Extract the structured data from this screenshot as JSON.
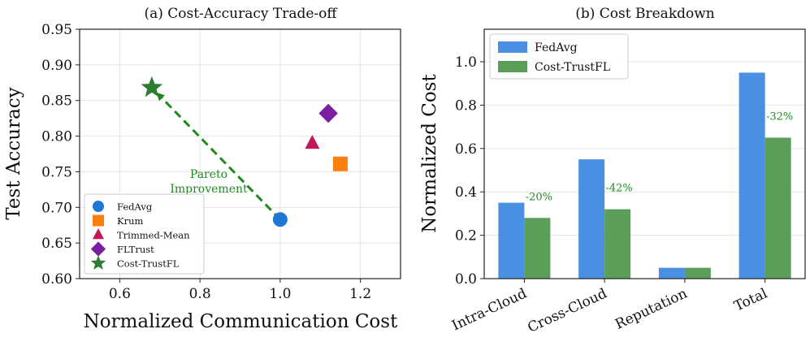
{
  "chart_data": [
    {
      "type": "scatter",
      "title": "(a) Cost-Accuracy Trade-off",
      "xlabel": "Normalized Communication Cost",
      "ylabel": "Test Accuracy",
      "xlim": [
        0.5,
        1.3
      ],
      "ylim": [
        0.6,
        0.95
      ],
      "xticks": [
        0.6,
        0.8,
        1.0,
        1.2
      ],
      "yticks": [
        0.6,
        0.65,
        0.7,
        0.75,
        0.8,
        0.85,
        0.9,
        0.95
      ],
      "xtick_labels": [
        "0.6",
        "0.8",
        "1.0",
        "1.2"
      ],
      "ytick_labels": [
        "0.60",
        "0.65",
        "0.70",
        "0.75",
        "0.80",
        "0.85",
        "0.90",
        "0.95"
      ],
      "grid": true,
      "legend_position": "lower-left",
      "series": [
        {
          "name": "FedAvg",
          "marker": "circle",
          "color": "#1f77d4",
          "x": 1.0,
          "y": 0.683
        },
        {
          "name": "Krum",
          "marker": "square",
          "color": "#ff7f0e",
          "x": 1.15,
          "y": 0.761
        },
        {
          "name": "Trimmed-Mean",
          "marker": "triangle",
          "color": "#c2185b",
          "x": 1.08,
          "y": 0.79
        },
        {
          "name": "FLTrust",
          "marker": "diamond",
          "color": "#7b1fa2",
          "x": 1.12,
          "y": 0.832
        },
        {
          "name": "Cost-TrustFL",
          "marker": "star",
          "color": "#2e7d32",
          "x": 0.68,
          "y": 0.868
        }
      ],
      "annotation": {
        "lines": [
          "Pareto",
          "Improvement"
        ],
        "color": "#1e8a1e",
        "arrow_from": {
          "x": 1.0,
          "y": 0.683
        },
        "arrow_to": {
          "x": 0.68,
          "y": 0.868
        }
      }
    },
    {
      "type": "bar",
      "title": "(b) Cost Breakdown",
      "xlabel": "",
      "ylabel": "Normalized Cost",
      "ylim": [
        0,
        1.15
      ],
      "yticks": [
        0,
        0.2,
        0.4,
        0.6,
        0.8,
        1.0
      ],
      "ytick_labels": [
        "0.0",
        "0.2",
        "0.4",
        "0.6",
        "0.8",
        "1.0"
      ],
      "grid": true,
      "legend_position": "upper-left",
      "categories": [
        "Intra-Cloud",
        "Cross-Cloud",
        "Reputation",
        "Total"
      ],
      "series": [
        {
          "name": "FedAvg",
          "color": "#4a90e2",
          "values": [
            0.35,
            0.55,
            0.05,
            0.95
          ]
        },
        {
          "name": "Cost-TrustFL",
          "color": "#5a9e5a",
          "values": [
            0.28,
            0.32,
            0.05,
            0.65
          ]
        }
      ],
      "bar_labels": [
        "-20%",
        "-42%",
        "",
        "-32%"
      ],
      "bar_label_color": "#1e8a1e"
    }
  ]
}
